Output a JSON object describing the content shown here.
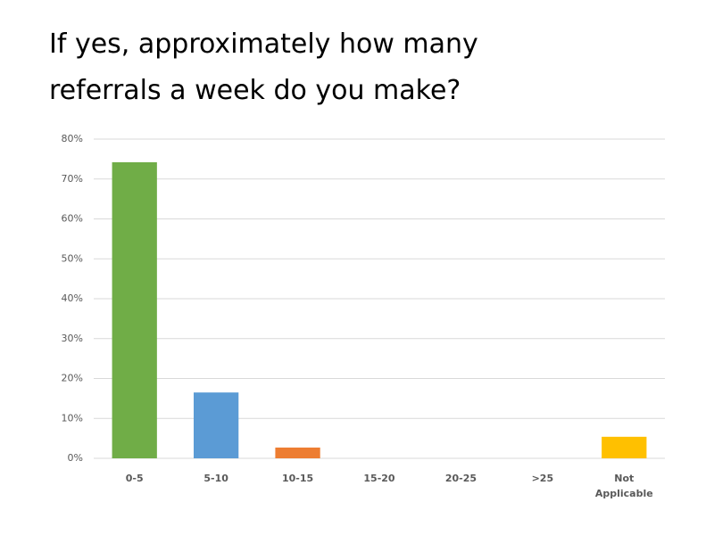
{
  "chart_data": {
    "type": "bar",
    "title": "If yes, approximately how many referrals a week do you make?",
    "categories": [
      "0-5",
      "5-10",
      "10-15",
      "15-20",
      "20-25",
      ">25",
      "Not Applicable"
    ],
    "values": [
      74.2,
      16.5,
      2.7,
      0,
      0,
      0,
      5.4
    ],
    "colors": [
      "#70ad47",
      "#5b9bd5",
      "#ed7d31",
      "#a5a5a5",
      "#4472c4",
      "#264478",
      "#ffc000"
    ],
    "ylim": [
      0,
      80
    ],
    "yticks": [
      {
        "value": 0,
        "label": "0%"
      },
      {
        "value": 10,
        "label": "10%"
      },
      {
        "value": 20,
        "label": "20%"
      },
      {
        "value": 30,
        "label": "30%"
      },
      {
        "value": 40,
        "label": "40%"
      },
      {
        "value": 50,
        "label": "50%"
      },
      {
        "value": 60,
        "label": "60%"
      },
      {
        "value": 70,
        "label": "70%"
      },
      {
        "value": 80,
        "label": "80%"
      }
    ],
    "grid": true
  }
}
